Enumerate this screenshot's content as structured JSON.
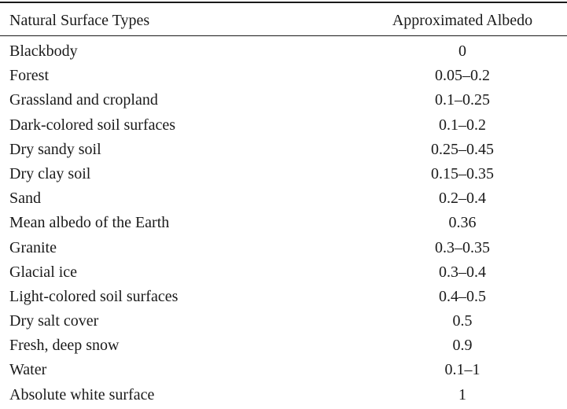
{
  "table": {
    "headers": {
      "surface": "Natural Surface Types",
      "albedo": "Approximated Albedo"
    },
    "rows": [
      {
        "surface": "Blackbody",
        "albedo": "0"
      },
      {
        "surface": "Forest",
        "albedo": "0.05–0.2"
      },
      {
        "surface": "Grassland and cropland",
        "albedo": "0.1–0.25"
      },
      {
        "surface": "Dark-colored soil surfaces",
        "albedo": "0.1–0.2"
      },
      {
        "surface": "Dry sandy soil",
        "albedo": "0.25–0.45"
      },
      {
        "surface": "Dry clay soil",
        "albedo": "0.15–0.35"
      },
      {
        "surface": "Sand",
        "albedo": "0.2–0.4"
      },
      {
        "surface": "Mean albedo of the Earth",
        "albedo": "0.36"
      },
      {
        "surface": "Granite",
        "albedo": "0.3–0.35"
      },
      {
        "surface": "Glacial ice",
        "albedo": "0.3–0.4"
      },
      {
        "surface": "Light-colored soil surfaces",
        "albedo": "0.4–0.5"
      },
      {
        "surface": "Dry salt cover",
        "albedo": "0.5"
      },
      {
        "surface": "Fresh, deep snow",
        "albedo": "0.9"
      },
      {
        "surface": "Water",
        "albedo": "0.1–1"
      },
      {
        "surface": "Absolute white surface",
        "albedo": "1"
      }
    ]
  }
}
